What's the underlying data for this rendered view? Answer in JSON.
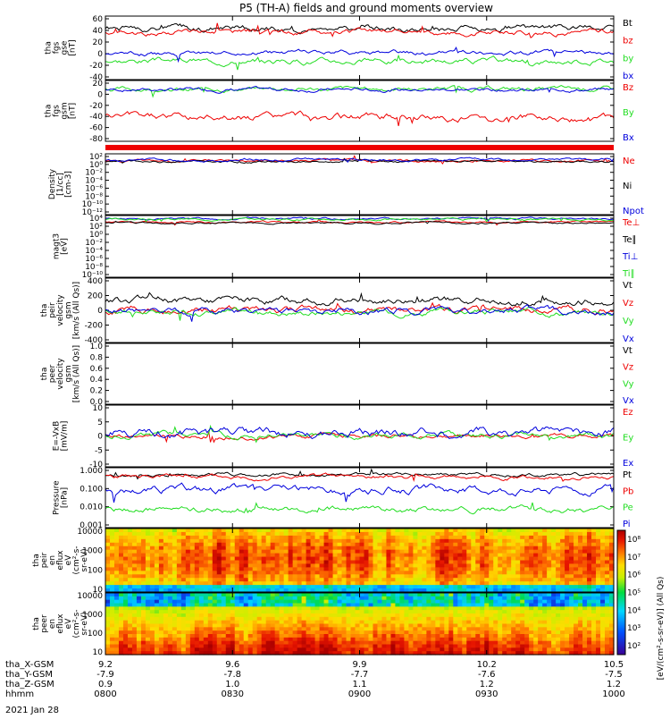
{
  "title": "P5 (TH-A) fields and ground moments overview",
  "date": "2021 Jan 28",
  "colors": {
    "black": "#000000",
    "red": "#ee0000",
    "green": "#22dd22",
    "blue": "#0000dd"
  },
  "time_axis": {
    "start_hhmm": "0800",
    "end_hhmm": "1000",
    "major_labels": [
      "0800",
      "0830",
      "0900",
      "0930",
      "1000"
    ],
    "ephemeris": {
      "row_labels": [
        "tha_X-GSM",
        "tha_Y-GSM",
        "tha_Z-GSM",
        "hhmm"
      ],
      "x": [
        "9.2",
        "9.6",
        "9.9",
        "10.2",
        "10.5"
      ],
      "y": [
        "-7.9",
        "-7.8",
        "-7.7",
        "-7.6",
        "-7.5"
      ],
      "z": [
        "0.9",
        "1.0",
        "1.1",
        "1.2",
        "1.2"
      ]
    }
  },
  "chart_data": [
    {
      "id": "fgs-bt",
      "type": "line",
      "ylabel": [
        "tha",
        "fgs",
        "gse",
        "[nT]"
      ],
      "ylim": [
        -40,
        60
      ],
      "yticks": [
        "60",
        "40",
        "20",
        "0",
        "-20",
        "-40"
      ],
      "legend": [
        {
          "label": "Bt",
          "color": "#000000"
        },
        {
          "label": "bz",
          "color": "#ee0000"
        },
        {
          "label": "by",
          "color": "#22dd22"
        },
        {
          "label": "bx",
          "color": "#0000dd"
        }
      ],
      "series": [
        {
          "name": "Bt",
          "color": "#000000",
          "base": 40,
          "amp": 7,
          "seed": 1
        },
        {
          "name": "bz",
          "color": "#ee0000",
          "base": 35,
          "amp": 6,
          "seed": 2
        },
        {
          "name": "by",
          "color": "#22dd22",
          "base": -10,
          "amp": 6,
          "seed": 3
        },
        {
          "name": "bx",
          "color": "#0000dd",
          "base": 2,
          "amp": 5,
          "seed": 4
        }
      ]
    },
    {
      "id": "fgs-gsm",
      "type": "line",
      "ylabel": [
        "tha",
        "fgs",
        "gsm",
        "[nT]"
      ],
      "ylim": [
        -80,
        20
      ],
      "yticks": [
        "20",
        "0",
        "-20",
        "-40",
        "-60",
        "-80"
      ],
      "legend": [
        {
          "label": "Bz",
          "color": "#ee0000"
        },
        {
          "label": "By",
          "color": "#22dd22"
        },
        {
          "label": "Bx",
          "color": "#0000dd"
        }
      ],
      "series": [
        {
          "name": "Bz",
          "color": "#ee0000",
          "base": -40,
          "amp": 8,
          "seed": 5
        },
        {
          "name": "By",
          "color": "#22dd22",
          "base": 6,
          "amp": 5,
          "seed": 6
        },
        {
          "name": "Bx",
          "color": "#0000dd",
          "base": 5,
          "amp": 4,
          "seed": 7
        }
      ]
    },
    {
      "id": "density",
      "type": "line",
      "ylabel": [
        "Density",
        "[1/cc]",
        "[cm-3]"
      ],
      "ylim": [
        -12,
        2
      ],
      "log": true,
      "yticks": [
        "10²",
        "10⁰",
        "10⁻²",
        "10⁻⁴",
        "10⁻⁶",
        "10⁻⁸",
        "10⁻¹⁰",
        "10⁻¹²"
      ],
      "legend": [
        {
          "label": "Ne",
          "color": "#ee0000"
        },
        {
          "label": "Ni",
          "color": "#000000"
        },
        {
          "label": "Npot",
          "color": "#0000dd"
        }
      ],
      "series": [
        {
          "name": "Ne",
          "color": "#ee0000",
          "base": 0.4,
          "amp": 0.4,
          "seed": 8
        },
        {
          "name": "Ni",
          "color": "#000000",
          "base": 0.2,
          "amp": 0.35,
          "seed": 9
        },
        {
          "name": "Npot",
          "color": "#0000dd",
          "base": 0.6,
          "amp": 0.4,
          "seed": 10
        }
      ]
    },
    {
      "id": "temperature",
      "type": "line",
      "ylabel": [
        "magt3",
        "[eV]"
      ],
      "ylim": [
        -10,
        4
      ],
      "log": true,
      "yticks": [
        "10⁴",
        "10²",
        "10⁰",
        "10⁻²",
        "10⁻⁴",
        "10⁻⁶",
        "10⁻⁸",
        "10⁻¹⁰"
      ],
      "legend": [
        {
          "label": "Te⊥",
          "color": "#ee0000"
        },
        {
          "label": "Te∥",
          "color": "#000000"
        },
        {
          "label": "Ti⊥",
          "color": "#0000dd"
        },
        {
          "label": "Ti∥",
          "color": "#22dd22"
        }
      ],
      "series": [
        {
          "name": "Te⊥",
          "color": "#ee0000",
          "base": 2.5,
          "amp": 0.3,
          "seed": 11
        },
        {
          "name": "Te∥",
          "color": "#000000",
          "base": 2.3,
          "amp": 0.3,
          "seed": 12
        },
        {
          "name": "Ti⊥",
          "color": "#0000dd",
          "base": 3.3,
          "amp": 0.3,
          "seed": 13
        },
        {
          "name": "Ti∥",
          "color": "#22dd22",
          "base": 3.1,
          "amp": 0.3,
          "seed": 14
        }
      ]
    },
    {
      "id": "peir-velocity",
      "type": "line",
      "ylabel": [
        "tha",
        "peir",
        "velocity",
        "gsm",
        "[km/s (All Qs)]"
      ],
      "ylim": [
        -400,
        400
      ],
      "yticks": [
        "400",
        "200",
        "0",
        "-200",
        "-400"
      ],
      "legend": [
        {
          "label": "Vt",
          "color": "#000000"
        },
        {
          "label": "Vz",
          "color": "#ee0000"
        },
        {
          "label": "Vy",
          "color": "#22dd22"
        },
        {
          "label": "Vx",
          "color": "#0000dd"
        }
      ],
      "series": [
        {
          "name": "Vt",
          "color": "#000000",
          "base": 120,
          "amp": 60,
          "seed": 15
        },
        {
          "name": "Vz",
          "color": "#ee0000",
          "base": 0,
          "amp": 60,
          "seed": 16
        },
        {
          "name": "Vy",
          "color": "#22dd22",
          "base": -20,
          "amp": 50,
          "seed": 17
        },
        {
          "name": "Vx",
          "color": "#0000dd",
          "base": -10,
          "amp": 55,
          "seed": 18
        }
      ]
    },
    {
      "id": "peer-velocity",
      "type": "line",
      "ylabel": [
        "tha",
        "peer",
        "velocity",
        "gsm",
        "[km/s (All Qs)]"
      ],
      "ylim": [
        0,
        1
      ],
      "yticks": [
        "1.0",
        "0.8",
        "0.6",
        "0.4",
        "0.2",
        "0.0"
      ],
      "legend": [
        {
          "label": "Vt",
          "color": "#000000"
        },
        {
          "label": "Vz",
          "color": "#ee0000"
        },
        {
          "label": "Vy",
          "color": "#22dd22"
        },
        {
          "label": "Vx",
          "color": "#0000dd"
        }
      ],
      "series": []
    },
    {
      "id": "efield",
      "type": "line",
      "ylabel": [
        "E=-VxB",
        "[mV/m]"
      ],
      "ylim": [
        -10,
        10
      ],
      "yticks": [
        "10",
        "5",
        "0",
        "-5",
        "-10"
      ],
      "legend": [
        {
          "label": "Ez",
          "color": "#ee0000"
        },
        {
          "label": "Ey",
          "color": "#22dd22"
        },
        {
          "label": "Ex",
          "color": "#0000dd"
        }
      ],
      "series": [
        {
          "name": "Ez",
          "color": "#ee0000",
          "base": 0,
          "amp": 1,
          "seed": 19
        },
        {
          "name": "Ey",
          "color": "#22dd22",
          "base": 0.3,
          "amp": 1.2,
          "seed": 20
        },
        {
          "name": "Ex",
          "color": "#0000dd",
          "base": 1,
          "amp": 2,
          "seed": 21
        }
      ]
    },
    {
      "id": "pressure",
      "type": "line",
      "ylabel": [
        "Pressure",
        "[nPa]"
      ],
      "ylim": [
        -3,
        0
      ],
      "log": true,
      "yticks": [
        "1.000",
        "0.100",
        "0.010",
        "0.001"
      ],
      "legend": [
        {
          "label": "Pt",
          "color": "#000000"
        },
        {
          "label": "Pb",
          "color": "#ee0000"
        },
        {
          "label": "Pe",
          "color": "#22dd22"
        },
        {
          "label": "Pi",
          "color": "#0000dd"
        }
      ],
      "series": [
        {
          "name": "Pt",
          "color": "#000000",
          "base": -0.35,
          "amp": 0.12,
          "seed": 22
        },
        {
          "name": "Pb",
          "color": "#ee0000",
          "base": -0.45,
          "amp": 0.15,
          "seed": 23
        },
        {
          "name": "Pe",
          "color": "#22dd22",
          "base": -2.1,
          "amp": 0.2,
          "seed": 24
        },
        {
          "name": "Pi",
          "color": "#0000dd",
          "base": -1.1,
          "amp": 0.25,
          "seed": 25
        }
      ]
    },
    {
      "id": "peir-eflux",
      "type": "heatmap",
      "ylabel": [
        "tha",
        "peir",
        "en",
        "eflux",
        "eV",
        "(cm²-s-",
        "sr-eV)"
      ],
      "yticks": [
        "10000",
        "1000",
        "100",
        "10"
      ],
      "seed": 26
    },
    {
      "id": "peer-eflux",
      "type": "heatmap",
      "ylabel": [
        "tha",
        "peer",
        "en",
        "eflux",
        "eV",
        "(cm²-s-",
        "sr-eV)"
      ],
      "yticks": [
        "10000",
        "1000",
        "100",
        "10"
      ],
      "seed": 27
    }
  ],
  "colorbar": {
    "label": "[eV/(cm²-s-sr-eV)] (All Qs)",
    "ticks": [
      "10⁸",
      "10⁷",
      "10⁶",
      "10⁵",
      "10⁴",
      "10³",
      "10²"
    ]
  }
}
